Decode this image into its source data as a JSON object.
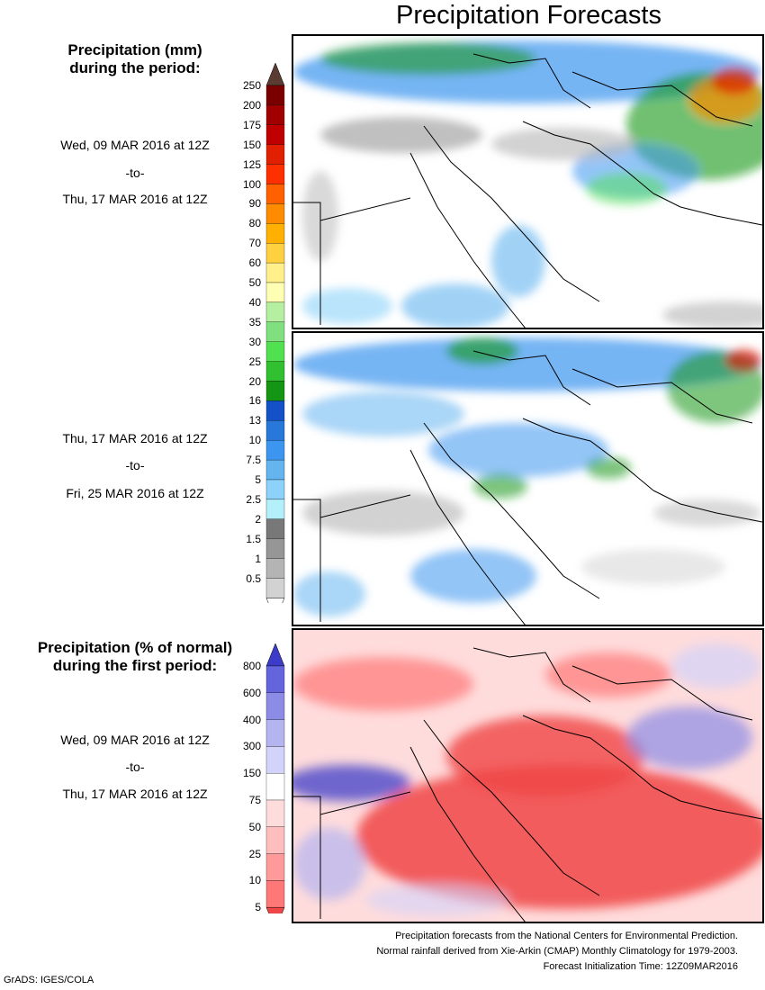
{
  "title": "Precipitation Forecasts",
  "precip_header": [
    "Precipitation (mm)",
    "during the period:"
  ],
  "period1": {
    "start": "Wed, 09 MAR 2016 at 12Z",
    "sep": "-to-",
    "end": "Thu, 17 MAR 2016 at 12Z"
  },
  "period2": {
    "start": "Thu, 17 MAR 2016 at 12Z",
    "sep": "-to-",
    "end": "Fri, 25 MAR 2016 at 12Z"
  },
  "pct_header": [
    "Precipitation (% of normal)",
    "during the first period:"
  ],
  "period3": {
    "start": "Wed, 09 MAR 2016 at 12Z",
    "sep": "-to-",
    "end": "Thu, 17 MAR 2016 at 12Z"
  },
  "mm_scale": {
    "ticks": [
      "250",
      "200",
      "175",
      "150",
      "125",
      "100",
      "90",
      "80",
      "70",
      "60",
      "50",
      "40",
      "35",
      "30",
      "25",
      "20",
      "16",
      "13",
      "10",
      "7.5",
      "5",
      "2.5",
      "2",
      "1.5",
      "1",
      "0.5"
    ],
    "colors": [
      "#7a0000",
      "#a00000",
      "#c00000",
      "#e02000",
      "#ff3000",
      "#ff6000",
      "#ff8c00",
      "#ffb000",
      "#ffd040",
      "#fff08c",
      "#ffffb4",
      "#b4f0a0",
      "#80e080",
      "#50e050",
      "#30c030",
      "#149614",
      "#1450c8",
      "#2878dc",
      "#3c96f0",
      "#64b4f0",
      "#8cd2fa",
      "#b4f0fa",
      "#787878",
      "#969696",
      "#b4b4b4",
      "#d2d2d2"
    ],
    "top_cap": "#5a3c32",
    "bottom_cap": "#ffffff"
  },
  "pct_scale": {
    "ticks": [
      "800",
      "600",
      "400",
      "300",
      "150",
      "75",
      "50",
      "25",
      "10",
      "5"
    ],
    "colors": [
      "#6464dc",
      "#8c8ce6",
      "#b4b4f0",
      "#d2d2fa",
      "#ffffff",
      "#ffdcdc",
      "#ffbebe",
      "#ff9a9a",
      "#ff7878"
    ],
    "top_cap": "#3c3cc8",
    "bottom_cap": "#f04646"
  },
  "footer": [
    "Precipitation forecasts from the National Centers for Environmental Prediction.",
    "Normal rainfall derived from Xie-Arkin (CMAP) Monthly Climatology for 1979-2003.",
    "Forecast Initialization Time: 12Z09MAR2016"
  ],
  "credit": "GrADS: IGES/COLA"
}
